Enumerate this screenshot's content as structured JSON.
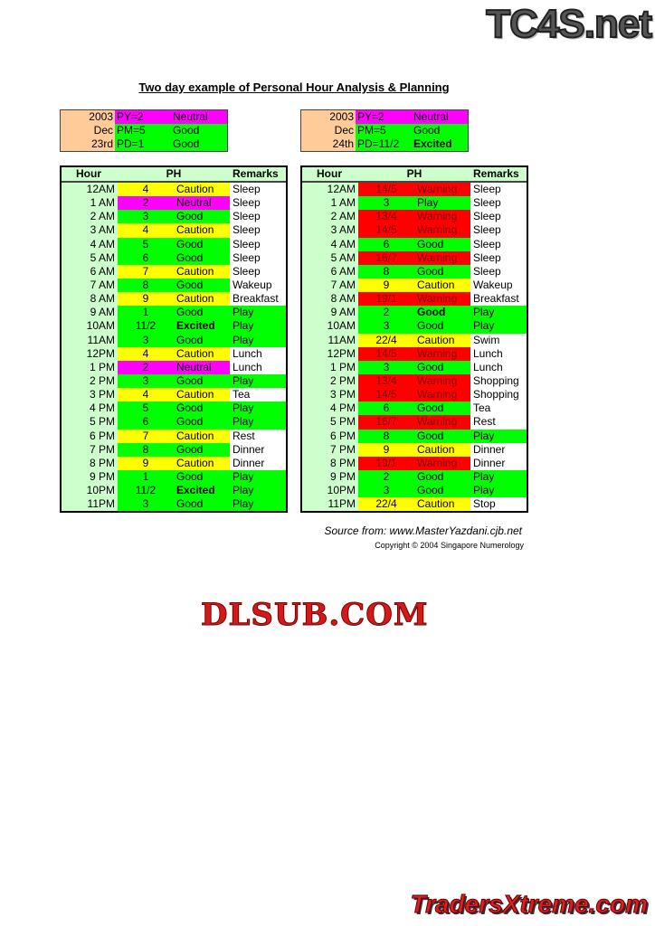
{
  "logos": {
    "top": "TC4S.net",
    "middle": "DLSUB.COM",
    "bottom": "TradersXtreme.com"
  },
  "title": "Two day example of Personal Hour Analysis & Planning",
  "colors": {
    "green": "#00ff00",
    "yellow": "#ffff00",
    "magenta": "#ff00ff",
    "red": "#ff0000",
    "white": "#ffffff",
    "header": "#ccffcc",
    "date": "#ffcc99"
  },
  "headers": {
    "hour": "Hour",
    "ph": "PH",
    "remarks": "Remarks"
  },
  "days": [
    {
      "info": [
        {
          "date": "2003",
          "code": "PY=2",
          "label": "Neutral",
          "color": "magenta",
          "bold": false
        },
        {
          "date": "Dec",
          "code": "PM=5",
          "label": "Good",
          "color": "green",
          "bold": false
        },
        {
          "date": "23rd",
          "code": "PD=1",
          "label": "Good",
          "color": "green",
          "bold": false
        }
      ],
      "rows": [
        {
          "hour": "12AM",
          "num": "4",
          "label": "Caution",
          "remarks": "Sleep",
          "color": "yellow",
          "rcolor": "white"
        },
        {
          "hour": "1 AM",
          "num": "2",
          "label": "Neutral",
          "remarks": "Sleep",
          "color": "magenta",
          "rcolor": "white"
        },
        {
          "hour": "2 AM",
          "num": "3",
          "label": "Good",
          "remarks": "Sleep",
          "color": "green",
          "rcolor": "white"
        },
        {
          "hour": "3 AM",
          "num": "4",
          "label": "Caution",
          "remarks": "Sleep",
          "color": "yellow",
          "rcolor": "white"
        },
        {
          "hour": "4 AM",
          "num": "5",
          "label": "Good",
          "remarks": "Sleep",
          "color": "green",
          "rcolor": "white"
        },
        {
          "hour": "5 AM",
          "num": "6",
          "label": "Good",
          "remarks": "Sleep",
          "color": "green",
          "rcolor": "white"
        },
        {
          "hour": "6 AM",
          "num": "7",
          "label": "Caution",
          "remarks": "Sleep",
          "color": "yellow",
          "rcolor": "white"
        },
        {
          "hour": "7 AM",
          "num": "8",
          "label": "Good",
          "remarks": "Wakeup",
          "color": "green",
          "rcolor": "white"
        },
        {
          "hour": "8 AM",
          "num": "9",
          "label": "Caution",
          "remarks": "Breakfast",
          "color": "yellow",
          "rcolor": "white"
        },
        {
          "hour": "9 AM",
          "num": "1",
          "label": "Good",
          "remarks": "Play",
          "color": "green",
          "rcolor": "green"
        },
        {
          "hour": "10AM",
          "num": "11/2",
          "label": "Excited",
          "remarks": "Play",
          "color": "green",
          "rcolor": "green",
          "bold": true
        },
        {
          "hour": "11AM",
          "num": "3",
          "label": "Good",
          "remarks": "Play",
          "color": "green",
          "rcolor": "green"
        },
        {
          "hour": "12PM",
          "num": "4",
          "label": "Caution",
          "remarks": "Lunch",
          "color": "yellow",
          "rcolor": "white"
        },
        {
          "hour": "1 PM",
          "num": "2",
          "label": "Neutral",
          "remarks": "Lunch",
          "color": "magenta",
          "rcolor": "white"
        },
        {
          "hour": "2 PM",
          "num": "3",
          "label": "Good",
          "remarks": "Play",
          "color": "green",
          "rcolor": "green"
        },
        {
          "hour": "3 PM",
          "num": "4",
          "label": "Caution",
          "remarks": "Tea",
          "color": "yellow",
          "rcolor": "white"
        },
        {
          "hour": "4 PM",
          "num": "5",
          "label": "Good",
          "remarks": "Play",
          "color": "green",
          "rcolor": "green"
        },
        {
          "hour": "5 PM",
          "num": "6",
          "label": "Good",
          "remarks": "Play",
          "color": "green",
          "rcolor": "green"
        },
        {
          "hour": "6 PM",
          "num": "7",
          "label": "Caution",
          "remarks": "Rest",
          "color": "yellow",
          "rcolor": "white"
        },
        {
          "hour": "7 PM",
          "num": "8",
          "label": "Good",
          "remarks": "Dinner",
          "color": "green",
          "rcolor": "white"
        },
        {
          "hour": "8 PM",
          "num": "9",
          "label": "Caution",
          "remarks": "Dinner",
          "color": "yellow",
          "rcolor": "white"
        },
        {
          "hour": "9 PM",
          "num": "1",
          "label": "Good",
          "remarks": "Play",
          "color": "green",
          "rcolor": "green"
        },
        {
          "hour": "10PM",
          "num": "11/2",
          "label": "Excited",
          "remarks": "Play",
          "color": "green",
          "rcolor": "green",
          "bold": true
        },
        {
          "hour": "11PM",
          "num": "3",
          "label": "Good",
          "remarks": "Play",
          "color": "green",
          "rcolor": "green"
        }
      ]
    },
    {
      "info": [
        {
          "date": "2003",
          "code": "PY=2",
          "label": "Neutral",
          "color": "magenta",
          "bold": false
        },
        {
          "date": "Dec",
          "code": "PM=5",
          "label": "Good",
          "color": "green",
          "bold": false
        },
        {
          "date": "24th",
          "code": "PD=11/2",
          "label": "Excited",
          "color": "green",
          "bold": true
        }
      ],
      "rows": [
        {
          "hour": "12AM",
          "num": "14/5",
          "label": "Warning",
          "remarks": "Sleep",
          "color": "red",
          "rcolor": "white"
        },
        {
          "hour": "1 AM",
          "num": "3",
          "label": "Play",
          "remarks": "Sleep",
          "color": "green",
          "rcolor": "white"
        },
        {
          "hour": "2 AM",
          "num": "13/4",
          "label": "Warning",
          "remarks": "Sleep",
          "color": "red",
          "rcolor": "white"
        },
        {
          "hour": "3 AM",
          "num": "14/5",
          "label": "Warning",
          "remarks": "Sleep",
          "color": "red",
          "rcolor": "white"
        },
        {
          "hour": "4 AM",
          "num": "6",
          "label": "Good",
          "remarks": "Sleep",
          "color": "green",
          "rcolor": "white"
        },
        {
          "hour": "5 AM",
          "num": "16/7",
          "label": "Warning",
          "remarks": "Sleep",
          "color": "red",
          "rcolor": "white"
        },
        {
          "hour": "6 AM",
          "num": "8",
          "label": "Good",
          "remarks": "Sleep",
          "color": "green",
          "rcolor": "white"
        },
        {
          "hour": "7 AM",
          "num": "9",
          "label": "Caution",
          "remarks": "Wakeup",
          "color": "yellow",
          "rcolor": "white"
        },
        {
          "hour": "8 AM",
          "num": "19/1",
          "label": "Warning",
          "remarks": "Breakfast",
          "color": "red",
          "rcolor": "white"
        },
        {
          "hour": "9 AM",
          "num": "2",
          "label": "Good",
          "remarks": "Play",
          "color": "green",
          "rcolor": "green",
          "bold": true
        },
        {
          "hour": "10AM",
          "num": "3",
          "label": "Good",
          "remarks": "Play",
          "color": "green",
          "rcolor": "green"
        },
        {
          "hour": "11AM",
          "num": "22/4",
          "label": "Caution",
          "remarks": "Swim",
          "color": "yellow",
          "rcolor": "white"
        },
        {
          "hour": "12PM",
          "num": "14/5",
          "label": "Warning",
          "remarks": "Lunch",
          "color": "red",
          "rcolor": "white"
        },
        {
          "hour": "1 PM",
          "num": "3",
          "label": "Good",
          "remarks": "Lunch",
          "color": "green",
          "rcolor": "white"
        },
        {
          "hour": "2 PM",
          "num": "13/4",
          "label": "Warning",
          "remarks": "Shopping",
          "color": "red",
          "rcolor": "white"
        },
        {
          "hour": "3 PM",
          "num": "14/5",
          "label": "Warning",
          "remarks": "Shopping",
          "color": "red",
          "rcolor": "white"
        },
        {
          "hour": "4 PM",
          "num": "6",
          "label": "Good",
          "remarks": "Tea",
          "color": "green",
          "rcolor": "white"
        },
        {
          "hour": "5 PM",
          "num": "16/7",
          "label": "Warning",
          "remarks": "Rest",
          "color": "red",
          "rcolor": "white"
        },
        {
          "hour": "6 PM",
          "num": "8",
          "label": "Good",
          "remarks": "Play",
          "color": "green",
          "rcolor": "green"
        },
        {
          "hour": "7 PM",
          "num": "9",
          "label": "Caution",
          "remarks": "Dinner",
          "color": "yellow",
          "rcolor": "white"
        },
        {
          "hour": "8 PM",
          "num": "19/1",
          "label": "Warning",
          "remarks": "Dinner",
          "color": "red",
          "rcolor": "white"
        },
        {
          "hour": "9 PM",
          "num": "2",
          "label": "Good",
          "remarks": "Play",
          "color": "green",
          "rcolor": "green"
        },
        {
          "hour": "10PM",
          "num": "3",
          "label": "Good",
          "remarks": "Play",
          "color": "green",
          "rcolor": "green"
        },
        {
          "hour": "11PM",
          "num": "22/4",
          "label": "Caution",
          "remarks": "Stop",
          "color": "yellow",
          "rcolor": "white"
        }
      ]
    }
  ],
  "source": "Source from: www.MasterYazdani.cjb.net",
  "copyright": "Copyright © 2004 Singapore Numerology"
}
